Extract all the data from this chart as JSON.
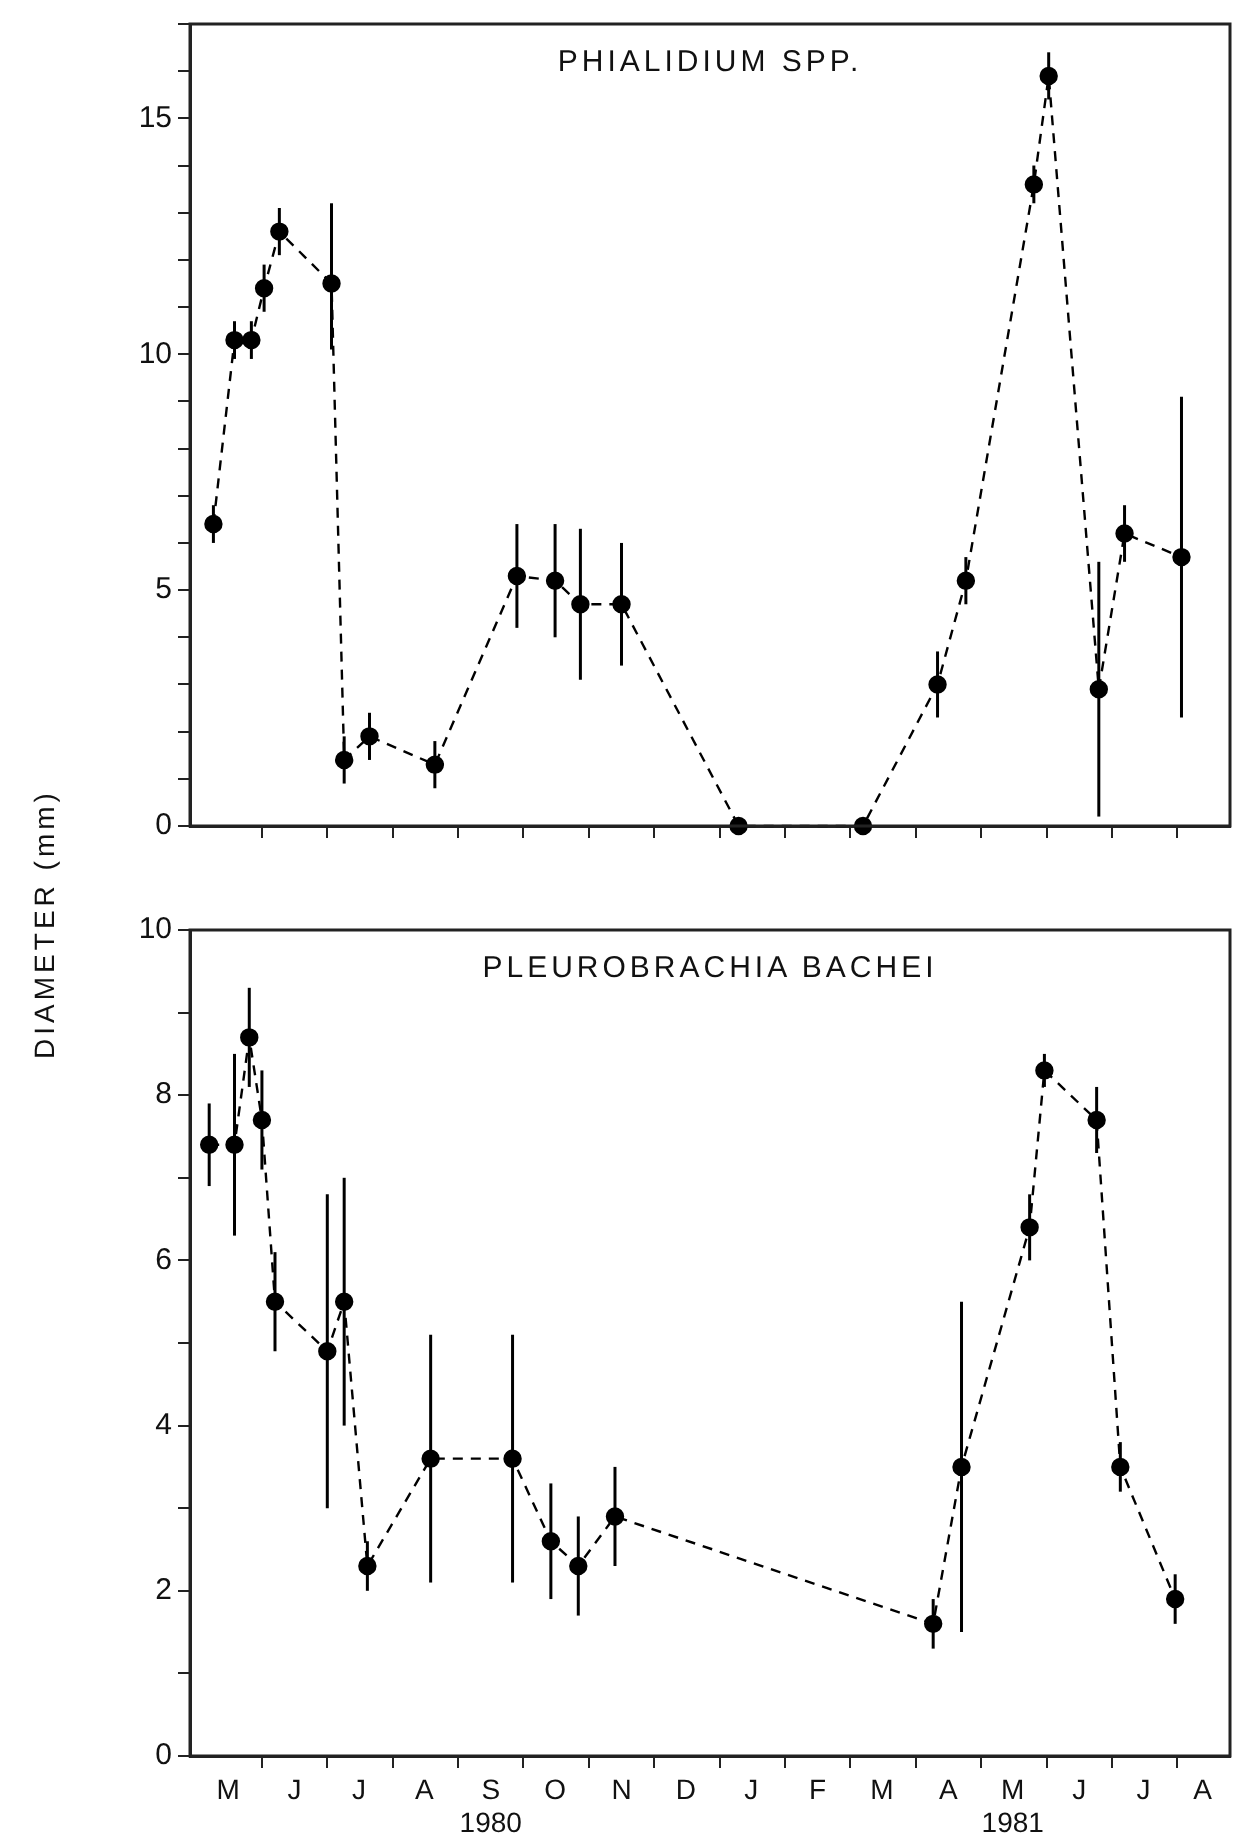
{
  "chart_data": [
    {
      "type": "line",
      "title": "PHIALIDIUM SPP.",
      "ylabel": "DIAMETER (mm)",
      "color": "#000000",
      "marker": "circle",
      "line_style": "dashed",
      "grid": false,
      "tick_labels": "y",
      "x": [
        "1980-05-09",
        "1980-05-19",
        "1980-05-27",
        "1980-06-02",
        "1980-06-09",
        "1980-07-03",
        "1980-07-09",
        "1980-07-21",
        "1980-08-21",
        "1980-09-28",
        "1980-10-16",
        "1980-10-28",
        "1980-11-16",
        "1981-01-10",
        "1981-03-07",
        "1981-04-11",
        "1981-04-24",
        "1981-05-26",
        "1981-06-02",
        "1981-06-25",
        "1981-07-07",
        "1981-08-03"
      ],
      "values": [
        6.4,
        10.3,
        10.3,
        11.4,
        12.6,
        11.5,
        1.4,
        1.9,
        1.3,
        5.3,
        5.2,
        4.7,
        4.7,
        0,
        0,
        3.0,
        5.2,
        13.6,
        15.9,
        2.9,
        6.2,
        5.7
      ],
      "errors": [
        0.4,
        0.4,
        0.4,
        0.5,
        0.5,
        [
          10.1,
          13.2
        ],
        0.5,
        0.5,
        0.5,
        1.1,
        1.2,
        1.6,
        1.3,
        null,
        null,
        0.7,
        0.5,
        0.4,
        0.5,
        2.7,
        0.6,
        3.4
      ],
      "xlim": [
        "1980-04-28",
        "1981-08-26"
      ],
      "xticks": [
        {
          "value": "1980-06-01",
          "label": null
        },
        {
          "value": "1980-07-01",
          "label": null
        },
        {
          "value": "1980-08-01",
          "label": null
        },
        {
          "value": "1980-09-01",
          "label": null
        },
        {
          "value": "1980-10-01",
          "label": null
        },
        {
          "value": "1980-11-01",
          "label": null
        },
        {
          "value": "1980-12-01",
          "label": null
        },
        {
          "value": "1981-01-01",
          "label": null
        },
        {
          "value": "1981-02-01",
          "label": null
        },
        {
          "value": "1981-03-01",
          "label": null
        },
        {
          "value": "1981-04-01",
          "label": null
        },
        {
          "value": "1981-05-01",
          "label": null
        },
        {
          "value": "1981-06-01",
          "label": null
        },
        {
          "value": "1981-07-01",
          "label": null
        },
        {
          "value": "1981-08-01",
          "label": null
        }
      ],
      "ylim": [
        0,
        17
      ],
      "yticks": [
        0,
        {
          "value": 1,
          "label": null
        },
        {
          "value": 2,
          "label": null
        },
        {
          "value": 3,
          "label": null
        },
        {
          "value": 4,
          "label": null
        },
        5,
        {
          "value": 6,
          "label": null
        },
        {
          "value": 7,
          "label": null
        },
        {
          "value": 8,
          "label": null
        },
        {
          "value": 9,
          "label": null
        },
        10,
        {
          "value": 11,
          "label": null
        },
        {
          "value": 12,
          "label": null
        },
        {
          "value": 13,
          "label": null
        },
        {
          "value": 14,
          "label": null
        },
        15,
        {
          "value": 16,
          "label": null
        },
        {
          "value": 17,
          "label": null
        }
      ]
    },
    {
      "type": "line",
      "title": "PLEUROBRACHIA BACHEI",
      "color": "#000000",
      "marker": "circle",
      "line_style": "dashed",
      "grid": false,
      "x": [
        "1980-05-07",
        "1980-05-19",
        "1980-05-26",
        "1980-06-01",
        "1980-06-07",
        "1980-07-01",
        "1980-07-09",
        "1980-07-20",
        "1980-08-19",
        "1980-09-26",
        "1980-10-14",
        "1980-10-27",
        "1980-11-13",
        "1981-04-09",
        "1981-04-22",
        "1981-05-24",
        "1981-05-31",
        "1981-06-24",
        "1981-07-05",
        "1981-07-31"
      ],
      "values": [
        7.4,
        7.4,
        8.7,
        7.7,
        5.5,
        4.9,
        5.5,
        2.3,
        3.6,
        3.6,
        2.6,
        2.3,
        2.9,
        1.6,
        3.5,
        6.4,
        8.3,
        7.7,
        3.5,
        1.9
      ],
      "errors": [
        0.5,
        1.1,
        0.6,
        0.6,
        0.6,
        1.9,
        1.5,
        0.3,
        1.5,
        1.5,
        0.7,
        0.6,
        0.6,
        0.3,
        2.0,
        0.4,
        0.2,
        0.4,
        0.3,
        0.3
      ],
      "xlim": [
        "1980-04-28",
        "1981-08-26"
      ],
      "xticks": [
        {
          "value": "1980-06-01",
          "label": null
        },
        {
          "value": "1980-07-01",
          "label": null
        },
        {
          "value": "1980-08-01",
          "label": null
        },
        {
          "value": "1980-09-01",
          "label": null
        },
        {
          "value": "1980-10-01",
          "label": null
        },
        {
          "value": "1980-11-01",
          "label": null
        },
        {
          "value": "1980-12-01",
          "label": null
        },
        {
          "value": "1981-01-01",
          "label": null
        },
        {
          "value": "1981-02-01",
          "label": null
        },
        {
          "value": "1981-03-01",
          "label": null
        },
        {
          "value": "1981-04-01",
          "label": null
        },
        {
          "value": "1981-05-01",
          "label": null
        },
        {
          "value": "1981-06-01",
          "label": null
        },
        {
          "value": "1981-07-01",
          "label": null
        },
        {
          "value": "1981-08-01",
          "label": null
        },
        {
          "value": "1980-05-16",
          "label": "M"
        },
        {
          "value": "1980-06-16",
          "label": "J"
        },
        {
          "value": "1980-07-16",
          "label": "J"
        },
        {
          "value": "1980-08-16",
          "label": "A"
        },
        {
          "value": "1980-09-16",
          "label": "S\n1980"
        },
        {
          "value": "1980-10-16",
          "label": "O"
        },
        {
          "value": "1980-11-16",
          "label": "N"
        },
        {
          "value": "1980-12-16",
          "label": "D"
        },
        {
          "value": "1981-01-16",
          "label": "J"
        },
        {
          "value": "1981-02-15",
          "label": "F"
        },
        {
          "value": "1981-03-16",
          "label": "M"
        },
        {
          "value": "1981-04-16",
          "label": "A"
        },
        {
          "value": "1981-05-16",
          "label": "M\n1981"
        },
        {
          "value": "1981-06-16",
          "label": "J"
        },
        {
          "value": "1981-07-16",
          "label": "J"
        },
        {
          "value": "1981-08-13",
          "label": "A"
        }
      ],
      "ylim": [
        0,
        10
      ],
      "yticks": [
        0,
        {
          "value": 1,
          "label": null
        },
        2,
        {
          "value": 3,
          "label": null
        },
        4,
        {
          "value": 5,
          "label": null
        },
        6,
        {
          "value": 7,
          "label": null
        },
        8,
        {
          "value": 9,
          "label": null
        },
        10
      ]
    }
  ]
}
